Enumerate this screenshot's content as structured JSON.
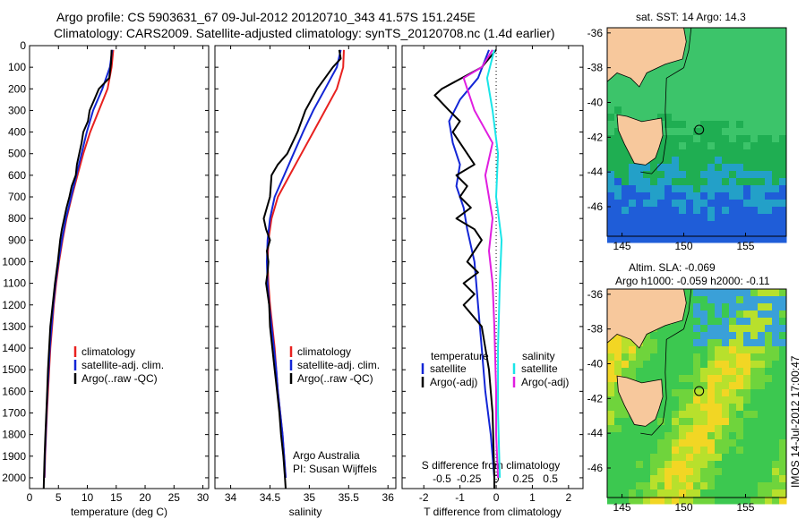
{
  "header": {
    "line1": "Argo profile: CS 5903631_67 09-Jul-2012 20120710_343 41.57S 151.245E",
    "line2": "Climatology: CARS2009. Satellite-adjusted climatology: synTS_20120708.nc (1.4d earlier)"
  },
  "chart_data": [
    {
      "type": "line",
      "xlabel": "temperature (deg C)",
      "xlim": [
        0,
        31
      ],
      "xticks": [
        "0",
        "5",
        "10",
        "15",
        "20",
        "25",
        "30"
      ],
      "ylim": [
        2050,
        0
      ],
      "yticks": [
        "0",
        "100",
        "200",
        "300",
        "400",
        "500",
        "600",
        "700",
        "800",
        "900",
        "1000",
        "1100",
        "1200",
        "1300",
        "1400",
        "1500",
        "1600",
        "1700",
        "1800",
        "1900",
        "2000"
      ],
      "legend": [
        "climatology",
        "satellite-adj. clim.",
        "Argo(..raw -QC)"
      ],
      "series": [
        {
          "name": "climatology",
          "color": "#e8211f",
          "points": [
            [
              14.5,
              20
            ],
            [
              14.2,
              100
            ],
            [
              13.5,
              200
            ],
            [
              12.0,
              300
            ],
            [
              10.5,
              400
            ],
            [
              9.3,
              500
            ],
            [
              8.3,
              600
            ],
            [
              7.3,
              700
            ],
            [
              6.4,
              800
            ],
            [
              5.7,
              900
            ],
            [
              5.1,
              1000
            ],
            [
              4.6,
              1100
            ],
            [
              4.2,
              1200
            ],
            [
              3.9,
              1300
            ],
            [
              3.6,
              1400
            ],
            [
              3.4,
              1500
            ],
            [
              3.2,
              1600
            ],
            [
              3.0,
              1700
            ],
            [
              2.85,
              1800
            ],
            [
              2.7,
              1900
            ],
            [
              2.6,
              2000
            ]
          ]
        },
        {
          "name": "satellite-adj. clim.",
          "color": "#1326d6",
          "points": [
            [
              14.3,
              20
            ],
            [
              13.9,
              100
            ],
            [
              12.6,
              200
            ],
            [
              11.0,
              300
            ],
            [
              9.9,
              400
            ],
            [
              9.0,
              500
            ],
            [
              8.1,
              600
            ],
            [
              7.2,
              700
            ],
            [
              6.3,
              800
            ],
            [
              5.6,
              900
            ],
            [
              5.0,
              1000
            ],
            [
              4.5,
              1100
            ],
            [
              4.1,
              1200
            ],
            [
              3.8,
              1300
            ],
            [
              3.5,
              1400
            ],
            [
              3.3,
              1500
            ],
            [
              3.1,
              1600
            ],
            [
              2.95,
              1700
            ],
            [
              2.8,
              1800
            ],
            [
              2.65,
              1900
            ],
            [
              2.55,
              2000
            ]
          ]
        },
        {
          "name": "Argo(..raw -QC)",
          "color": "#000000",
          "points": [
            [
              14.2,
              20
            ],
            [
              14.1,
              80
            ],
            [
              13.8,
              150
            ],
            [
              12.0,
              200
            ],
            [
              11.2,
              250
            ],
            [
              10.4,
              300
            ],
            [
              10.1,
              350
            ],
            [
              9.3,
              400
            ],
            [
              9.0,
              450
            ],
            [
              8.6,
              500
            ],
            [
              8.2,
              550
            ],
            [
              8.0,
              600
            ],
            [
              7.3,
              650
            ],
            [
              6.9,
              700
            ],
            [
              6.4,
              750
            ],
            [
              6.0,
              800
            ],
            [
              5.6,
              850
            ],
            [
              5.3,
              900
            ],
            [
              4.9,
              1000
            ],
            [
              4.4,
              1100
            ],
            [
              4.0,
              1200
            ],
            [
              3.6,
              1300
            ],
            [
              3.4,
              1400
            ],
            [
              3.2,
              1500
            ],
            [
              3.05,
              1600
            ],
            [
              2.9,
              1700
            ],
            [
              2.75,
              1800
            ],
            [
              2.6,
              1900
            ],
            [
              2.5,
              2000
            ],
            [
              2.45,
              2050
            ]
          ]
        }
      ]
    },
    {
      "type": "line",
      "xlabel": "salinity",
      "xlim": [
        33.8,
        36.1
      ],
      "xticks": [
        "34",
        "34.5",
        "35",
        "35.5",
        "36"
      ],
      "ylim": [
        2050,
        0
      ],
      "legend": [
        "climatology",
        "satellite-adj. clim.",
        "Argo(..raw -QC)"
      ],
      "annotation": [
        "Argo Australia",
        "PI: Susan Wijffels"
      ],
      "series": [
        {
          "name": "climatology",
          "color": "#e8211f",
          "points": [
            [
              35.44,
              20
            ],
            [
              35.43,
              100
            ],
            [
              35.35,
              200
            ],
            [
              35.2,
              300
            ],
            [
              35.05,
              400
            ],
            [
              34.9,
              500
            ],
            [
              34.75,
              600
            ],
            [
              34.6,
              700
            ],
            [
              34.52,
              800
            ],
            [
              34.48,
              900
            ],
            [
              34.47,
              1000
            ],
            [
              34.48,
              1100
            ],
            [
              34.5,
              1200
            ],
            [
              34.53,
              1300
            ],
            [
              34.56,
              1400
            ],
            [
              34.58,
              1500
            ],
            [
              34.6,
              1600
            ],
            [
              34.63,
              1700
            ],
            [
              34.66,
              1800
            ],
            [
              34.68,
              1900
            ],
            [
              34.7,
              2000
            ]
          ]
        },
        {
          "name": "satellite-adj. clim.",
          "color": "#1326d6",
          "points": [
            [
              35.4,
              20
            ],
            [
              35.35,
              100
            ],
            [
              35.2,
              200
            ],
            [
              35.05,
              300
            ],
            [
              34.92,
              400
            ],
            [
              34.8,
              500
            ],
            [
              34.68,
              600
            ],
            [
              34.56,
              700
            ],
            [
              34.5,
              800
            ],
            [
              34.47,
              900
            ],
            [
              34.46,
              1000
            ],
            [
              34.47,
              1100
            ],
            [
              34.49,
              1200
            ],
            [
              34.52,
              1300
            ],
            [
              34.55,
              1400
            ],
            [
              34.58,
              1500
            ],
            [
              34.6,
              1600
            ],
            [
              34.63,
              1700
            ],
            [
              34.66,
              1800
            ],
            [
              34.68,
              1900
            ],
            [
              34.7,
              2000
            ]
          ]
        },
        {
          "name": "Argo(..raw -QC)",
          "color": "#000000",
          "points": [
            [
              35.38,
              20
            ],
            [
              35.4,
              60
            ],
            [
              35.3,
              100
            ],
            [
              35.1,
              200
            ],
            [
              34.95,
              300
            ],
            [
              34.85,
              400
            ],
            [
              34.72,
              500
            ],
            [
              34.6,
              550
            ],
            [
              34.52,
              600
            ],
            [
              34.5,
              700
            ],
            [
              34.42,
              800
            ],
            [
              34.45,
              850
            ],
            [
              34.5,
              900
            ],
            [
              34.46,
              950
            ],
            [
              34.48,
              1000
            ],
            [
              34.47,
              1050
            ],
            [
              34.45,
              1100
            ],
            [
              34.49,
              1200
            ],
            [
              34.5,
              1300
            ],
            [
              34.53,
              1400
            ],
            [
              34.56,
              1500
            ],
            [
              34.59,
              1600
            ],
            [
              34.62,
              1700
            ],
            [
              34.64,
              1800
            ],
            [
              34.67,
              1900
            ],
            [
              34.69,
              2000
            ],
            [
              34.7,
              2050
            ]
          ]
        }
      ]
    },
    {
      "type": "line",
      "xlabel": "T difference from climatology",
      "xlabel_top": "S difference from climatology",
      "xlim": [
        -2.6,
        2.4
      ],
      "xticks": [
        "-2",
        "-1",
        "0",
        "1",
        "2"
      ],
      "xticks_top": [
        "-0.5",
        "-0.25",
        "0",
        "0.25",
        "0.5"
      ],
      "ylim": [
        2050,
        0
      ],
      "legend_left": {
        "title": "temperature",
        "items": [
          "satellite",
          "Argo(-adj)"
        ]
      },
      "legend_right": {
        "title": "salinity",
        "items": [
          "satellite",
          "Argo(-adj)"
        ]
      },
      "series": [
        {
          "name": "T satellite",
          "color": "#1326d6",
          "points": [
            [
              -0.2,
              20
            ],
            [
              -0.5,
              150
            ],
            [
              -1.0,
              250
            ],
            [
              -1.3,
              350
            ],
            [
              -1.2,
              450
            ],
            [
              -1.0,
              550
            ],
            [
              -1.1,
              650
            ],
            [
              -0.9,
              750
            ],
            [
              -0.8,
              850
            ],
            [
              -0.6,
              1000
            ],
            [
              -0.5,
              1200
            ],
            [
              -0.4,
              1400
            ],
            [
              -0.3,
              1600
            ],
            [
              -0.15,
              1800
            ],
            [
              -0.05,
              2000
            ]
          ]
        },
        {
          "name": "T Argo(-adj)",
          "color": "#000000",
          "points": [
            [
              0.0,
              20
            ],
            [
              -0.4,
              100
            ],
            [
              -1.5,
              200
            ],
            [
              -1.7,
              230
            ],
            [
              -1.3,
              300
            ],
            [
              -1.0,
              350
            ],
            [
              -1.2,
              400
            ],
            [
              -0.8,
              500
            ],
            [
              -0.6,
              550
            ],
            [
              -1.1,
              600
            ],
            [
              -0.8,
              650
            ],
            [
              -1.0,
              700
            ],
            [
              -0.7,
              750
            ],
            [
              -1.1,
              800
            ],
            [
              -0.6,
              850
            ],
            [
              -0.4,
              900
            ],
            [
              -0.6,
              950
            ],
            [
              -0.8,
              1000
            ],
            [
              -0.5,
              1050
            ],
            [
              -0.9,
              1100
            ],
            [
              -0.6,
              1150
            ],
            [
              -0.9,
              1200
            ],
            [
              -0.4,
              1300
            ],
            [
              -0.2,
              1500
            ],
            [
              -0.1,
              1700
            ],
            [
              -0.05,
              2000
            ],
            [
              -0.05,
              2050
            ]
          ]
        },
        {
          "name": "S satellite",
          "color": "#19e5e8",
          "points": [
            [
              -0.05,
              20
            ],
            [
              -0.25,
              150
            ],
            [
              -0.1,
              300
            ],
            [
              0.05,
              500
            ],
            [
              0.0,
              700
            ],
            [
              0.15,
              900
            ],
            [
              0.1,
              1100
            ],
            [
              0.05,
              1400
            ],
            [
              0.05,
              1700
            ],
            [
              0.1,
              2000
            ]
          ]
        },
        {
          "name": "S Argo(-adj)",
          "color": "#e01ee0",
          "points": [
            [
              -0.1,
              20
            ],
            [
              -0.4,
              100
            ],
            [
              -0.9,
              150
            ],
            [
              -0.6,
              300
            ],
            [
              -0.1,
              450
            ],
            [
              -0.3,
              600
            ],
            [
              -0.1,
              800
            ],
            [
              -0.2,
              950
            ],
            [
              -0.1,
              1100
            ],
            [
              -0.05,
              1300
            ],
            [
              0.0,
              1600
            ],
            [
              0.0,
              1800
            ],
            [
              0.05,
              2000
            ]
          ]
        }
      ]
    }
  ],
  "maps": {
    "top_title": "sat. SST: 14 Argo: 14.3",
    "bottom_title1": "Altim. SLA: -0.069",
    "bottom_title2": "Argo h1000: -0.059 h2000: -0.11",
    "lat_ticks": [
      "-36",
      "-38",
      "-40",
      "-42",
      "-44",
      "-46"
    ],
    "lon_ticks": [
      "145",
      "150",
      "155"
    ],
    "sst_colors": [
      "#1f5dd8",
      "#23a0c8",
      "#3cc46a",
      "#1fae52",
      "#40c83c"
    ],
    "sla_colors": [
      "#3cc850",
      "#6fd43c",
      "#b8e02c",
      "#f2d624",
      "#3aa0d8"
    ],
    "land_color": "#f7c89c"
  },
  "footer": {
    "side_text": "IMOS 14-Jul-2012 17:00:47"
  }
}
